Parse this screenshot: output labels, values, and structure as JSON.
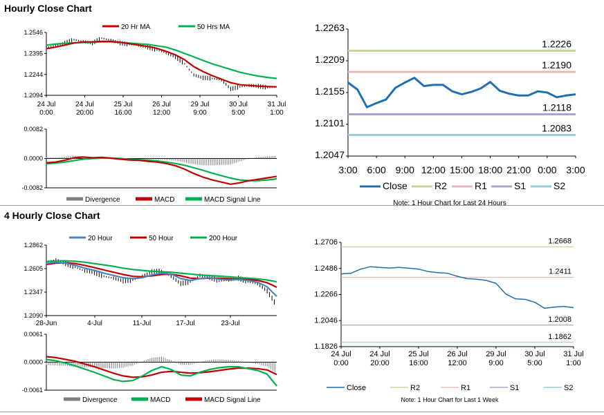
{
  "page": {
    "hourly_title": "Hourly Close Chart",
    "four_hourly_title": "4 Hourly Close Chart"
  },
  "colors": {
    "price": "#000000",
    "ma_red": "#c00000",
    "ma_green": "#00b050",
    "ma_blue": "#4f81bd",
    "close": "#1f6fb0",
    "r2": "#c4d79b",
    "r1": "#e6b8b7",
    "s1": "#b1a0c7",
    "s2": "#92cddc",
    "divergence": "#7f7f7f"
  },
  "chart_data": [
    {
      "id": "hourly-price",
      "type": "line",
      "title": "Hourly Close Chart",
      "legend": [
        "20 Hr MA",
        "50 Hrs MA"
      ],
      "y_ticks": [
        "1.2546",
        "1.2395",
        "1.2244",
        "1.2094"
      ],
      "ylim": [
        1.2094,
        1.2546
      ],
      "x_ticks": [
        {
          "top": "24 Jul",
          "bottom": "0:00"
        },
        {
          "top": "24 Jul",
          "bottom": "20:00"
        },
        {
          "top": "25 Jul",
          "bottom": "16:00"
        },
        {
          "top": "26 Jul",
          "bottom": "12:00"
        },
        {
          "top": "29 Jul",
          "bottom": "9:00"
        },
        {
          "top": "30 Jul",
          "bottom": "5:00"
        },
        {
          "top": "31 Jul",
          "bottom": "1:00"
        }
      ],
      "series": [
        {
          "name": "Price",
          "values": [
            1.244,
            1.245,
            1.247,
            1.2495,
            1.248,
            1.247,
            1.2505,
            1.249,
            1.247,
            1.246,
            1.2455,
            1.244,
            1.242,
            1.24,
            1.237,
            1.232,
            1.224,
            1.222,
            1.2215,
            1.2205,
            1.214,
            1.2155,
            1.2165,
            1.216,
            1.215,
            1.2155
          ]
        },
        {
          "name": "20 Hr MA",
          "values": [
            1.243,
            1.244,
            1.2455,
            1.247,
            1.2478,
            1.2478,
            1.2482,
            1.2482,
            1.2475,
            1.2465,
            1.2455,
            1.2445,
            1.2432,
            1.241,
            1.2385,
            1.235,
            1.23,
            1.2265,
            1.2235,
            1.221,
            1.2185,
            1.217,
            1.2165,
            1.216,
            1.2157,
            1.2155
          ]
        },
        {
          "name": "50 Hrs MA",
          "values": [
            1.2455,
            1.2462,
            1.2468,
            1.2472,
            1.2474,
            1.2475,
            1.2478,
            1.2478,
            1.2475,
            1.247,
            1.2465,
            1.246,
            1.245,
            1.244,
            1.242,
            1.2395,
            1.237,
            1.2345,
            1.232,
            1.23,
            1.228,
            1.226,
            1.2245,
            1.2232,
            1.2222,
            1.2215
          ]
        }
      ]
    },
    {
      "id": "hourly-macd",
      "type": "line",
      "legend": [
        "Divergence",
        "MACD",
        "MACD Signal Line"
      ],
      "y_ticks": [
        "0.0082",
        "0.0000",
        "-0.0082"
      ],
      "ylim": [
        -0.0082,
        0.0082
      ],
      "series": [
        {
          "name": "MACD",
          "values": [
            -0.0012,
            -0.001,
            -0.0005,
            0.0002,
            0.0004,
            0.0002,
            0.0003,
            0.0001,
            -0.0002,
            -0.0004,
            -0.0005,
            -0.0008,
            -0.001,
            -0.0014,
            -0.002,
            -0.003,
            -0.0042,
            -0.0052,
            -0.006,
            -0.0066,
            -0.0072,
            -0.0068,
            -0.0062,
            -0.0058,
            -0.0054,
            -0.005
          ]
        },
        {
          "name": "MACD Signal Line",
          "values": [
            -0.0015,
            -0.0013,
            -0.001,
            -0.0006,
            -0.0002,
            0.0,
            0.0001,
            0.0001,
            0.0,
            -0.0002,
            -0.0003,
            -0.0005,
            -0.0007,
            -0.001,
            -0.0014,
            -0.0019,
            -0.0026,
            -0.0033,
            -0.0041,
            -0.0048,
            -0.0055,
            -0.006,
            -0.0062,
            -0.0062,
            -0.006,
            -0.0057
          ]
        },
        {
          "name": "Divergence",
          "values": [
            0.0003,
            0.0003,
            0.0005,
            0.0008,
            0.0006,
            0.0002,
            0.0002,
            0.0,
            -0.0002,
            -0.0002,
            -0.0002,
            -0.0003,
            -0.0003,
            -0.0004,
            -0.0006,
            -0.0011,
            -0.0016,
            -0.0019,
            -0.0019,
            -0.0018,
            -0.0017,
            -0.0008,
            0.0,
            0.0004,
            0.0006,
            0.0007
          ]
        }
      ]
    },
    {
      "id": "hourly-levels",
      "type": "line",
      "note": "Note: 1 Hour Chart for Last 24 Hours",
      "legend": [
        "Close",
        "R2",
        "R1",
        "S1",
        "S2"
      ],
      "y_ticks": [
        "1.2263",
        "1.2209",
        "1.2155",
        "1.2101",
        "1.2047"
      ],
      "ylim": [
        1.2047,
        1.2263
      ],
      "x_ticks": [
        "3:00",
        "6:00",
        "9:00",
        "12:00",
        "15:00",
        "18:00",
        "21:00",
        "0:00",
        "3:00"
      ],
      "levels": [
        {
          "name": "R2",
          "value": 1.2226,
          "label": "1.2226"
        },
        {
          "name": "R1",
          "value": 1.219,
          "label": "1.2190"
        },
        {
          "name": "S1",
          "value": 1.2118,
          "label": "1.2118"
        },
        {
          "name": "S2",
          "value": 1.2083,
          "label": "1.2083"
        }
      ],
      "series": [
        {
          "name": "Close",
          "values": [
            1.2172,
            1.216,
            1.213,
            1.2137,
            1.2143,
            1.2163,
            1.2172,
            1.218,
            1.2166,
            1.2168,
            1.2168,
            1.2157,
            1.2152,
            1.2156,
            1.2162,
            1.2173,
            1.2158,
            1.2153,
            1.215,
            1.215,
            1.2157,
            1.2155,
            1.2147,
            1.215,
            1.2152
          ]
        }
      ]
    },
    {
      "id": "four-hourly-price",
      "type": "line",
      "title": "4 Hourly Close Chart",
      "legend": [
        "20 Hour",
        "50 Hour",
        "200 Hour"
      ],
      "y_ticks": [
        "1.2862",
        "1.2605",
        "1.2347",
        "1.2090"
      ],
      "ylim": [
        1.209,
        1.2862
      ],
      "x_ticks": [
        "28-Jun",
        "4-Jul",
        "11-Jul",
        "17-Jul",
        "23-Jul"
      ],
      "series": [
        {
          "name": "Price",
          "values": [
            1.268,
            1.27,
            1.266,
            1.262,
            1.258,
            1.256,
            1.252,
            1.25,
            1.247,
            1.248,
            1.252,
            1.257,
            1.258,
            1.252,
            1.244,
            1.246,
            1.253,
            1.251,
            1.247,
            1.248,
            1.25,
            1.246,
            1.244,
            1.236,
            1.22
          ]
        },
        {
          "name": "20 Hour",
          "values": [
            1.266,
            1.2675,
            1.2665,
            1.264,
            1.261,
            1.2585,
            1.2555,
            1.253,
            1.2505,
            1.2495,
            1.2505,
            1.2535,
            1.2555,
            1.2545,
            1.2495,
            1.2475,
            1.2495,
            1.2505,
            1.249,
            1.248,
            1.2485,
            1.2475,
            1.2455,
            1.2405,
            1.23
          ]
        },
        {
          "name": "50 Hour",
          "values": [
            1.265,
            1.2665,
            1.267,
            1.266,
            1.264,
            1.2615,
            1.259,
            1.2565,
            1.254,
            1.252,
            1.2515,
            1.2525,
            1.254,
            1.2545,
            1.2525,
            1.25,
            1.2495,
            1.25,
            1.25,
            1.2495,
            1.249,
            1.2485,
            1.2475,
            1.245,
            1.24
          ]
        },
        {
          "name": "200 Hour",
          "values": [
            1.268,
            1.269,
            1.269,
            1.2685,
            1.2675,
            1.266,
            1.2645,
            1.263,
            1.261,
            1.2595,
            1.2585,
            1.2575,
            1.257,
            1.2565,
            1.2555,
            1.2545,
            1.2535,
            1.2528,
            1.2522,
            1.2515,
            1.2508,
            1.25,
            1.2492,
            1.248,
            1.246
          ]
        }
      ]
    },
    {
      "id": "four-hourly-macd",
      "type": "line",
      "legend": [
        "Divergence",
        "MACD",
        "MACD Signal Line"
      ],
      "y_ticks": [
        "0.0061",
        "0.0000",
        "-0.0061"
      ],
      "ylim": [
        -0.0061,
        0.0061
      ],
      "series": [
        {
          "name": "MACD",
          "values": [
            0.0006,
            0.0003,
            -0.0002,
            -0.0008,
            -0.0015,
            -0.0022,
            -0.003,
            -0.0038,
            -0.0042,
            -0.004,
            -0.003,
            -0.0018,
            -0.001,
            -0.0016,
            -0.0028,
            -0.003,
            -0.0022,
            -0.0016,
            -0.0012,
            -0.001,
            -0.001,
            -0.0014,
            -0.0018,
            -0.0026,
            -0.0052
          ]
        },
        {
          "name": "MACD Signal Line",
          "values": [
            0.0012,
            0.001,
            0.0006,
            0.0002,
            -0.0004,
            -0.001,
            -0.0017,
            -0.0024,
            -0.003,
            -0.0033,
            -0.0032,
            -0.0028,
            -0.0022,
            -0.002,
            -0.0022,
            -0.0024,
            -0.0023,
            -0.0021,
            -0.0018,
            -0.0015,
            -0.0013,
            -0.0013,
            -0.0014,
            -0.0017,
            -0.0027
          ]
        },
        {
          "name": "Divergence",
          "values": [
            -0.0006,
            -0.0007,
            -0.0008,
            -0.001,
            -0.0011,
            -0.0012,
            -0.0013,
            -0.0014,
            -0.0012,
            -0.0007,
            0.0002,
            0.001,
            0.0012,
            0.0004,
            -0.0006,
            -0.0006,
            0.0001,
            0.0005,
            0.0006,
            0.0005,
            0.0003,
            -0.0001,
            -0.0004,
            -0.0009,
            -0.0025
          ]
        }
      ]
    },
    {
      "id": "four-hourly-levels",
      "type": "line",
      "note": "Note: 1 Hour Chart for Last 1 Week",
      "legend": [
        "Close",
        "R2",
        "R1",
        "S1",
        "S2"
      ],
      "y_ticks": [
        "1.2706",
        "1.2486",
        "1.2266",
        "1.2046",
        "1.1826"
      ],
      "ylim": [
        1.1826,
        1.2706
      ],
      "x_ticks": [
        {
          "top": "24 Jul",
          "bottom": "0:00"
        },
        {
          "top": "24 Jul",
          "bottom": "20:00"
        },
        {
          "top": "25 Jul",
          "bottom": "16:00"
        },
        {
          "top": "26 Jul",
          "bottom": "12:00"
        },
        {
          "top": "29 Jul",
          "bottom": "9:00"
        },
        {
          "top": "30 Jul",
          "bottom": "5:00"
        },
        {
          "top": "31 Jul",
          "bottom": "1:00"
        }
      ],
      "levels": [
        {
          "name": "R2",
          "value": 1.2668,
          "label": "1.2668"
        },
        {
          "name": "R1",
          "value": 1.2411,
          "label": "1.2411"
        },
        {
          "name": "S1",
          "value": 1.2008,
          "label": "1.2008"
        },
        {
          "name": "S2",
          "value": 1.1862,
          "label": "1.1862"
        }
      ],
      "series": [
        {
          "name": "Close",
          "values": [
            1.244,
            1.2445,
            1.248,
            1.25,
            1.2495,
            1.249,
            1.2495,
            1.2488,
            1.248,
            1.246,
            1.245,
            1.2445,
            1.242,
            1.24,
            1.2395,
            1.2385,
            1.236,
            1.227,
            1.223,
            1.2225,
            1.22,
            1.215,
            1.216,
            1.2165,
            1.2155
          ]
        }
      ]
    }
  ]
}
